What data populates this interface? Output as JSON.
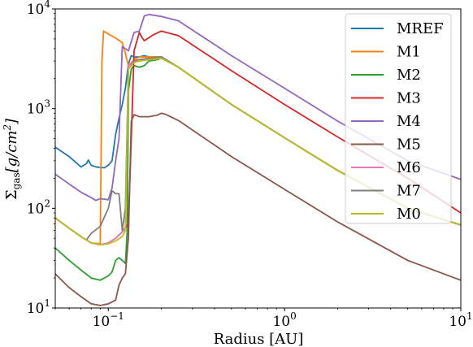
{
  "chart_data": {
    "type": "line",
    "xlabel": "Radius [AU]",
    "ylabel": "Σ_gas[g/cm²]",
    "xscale": "log",
    "yscale": "log",
    "xlim": [
      0.05,
      10
    ],
    "ylim": [
      10,
      10000
    ],
    "grid": false,
    "legend_position": "top-right",
    "x_ticks": [
      {
        "value": 0.1,
        "base": "10",
        "exp": "−1"
      },
      {
        "value": 1,
        "base": "10",
        "exp": "0"
      },
      {
        "value": 10,
        "base": "10",
        "exp": "1"
      }
    ],
    "y_ticks": [
      {
        "value": 10,
        "base": "10",
        "exp": "1"
      },
      {
        "value": 100,
        "base": "10",
        "exp": "2"
      },
      {
        "value": 1000,
        "base": "10",
        "exp": "3"
      },
      {
        "value": 10000,
        "base": "10",
        "exp": "4"
      }
    ],
    "series": [
      {
        "name": "MREF",
        "color": "#1f77b4",
        "x": [
          0.05,
          0.06,
          0.07,
          0.075,
          0.077,
          0.08,
          0.085,
          0.095,
          0.1,
          0.105,
          0.11,
          0.115,
          0.12,
          0.125,
          0.13,
          0.135,
          0.14,
          0.15,
          0.16,
          0.17,
          0.19,
          0.2,
          0.25,
          0.5,
          1,
          2,
          5,
          10
        ],
        "y": [
          410,
          330,
          260,
          280,
          305,
          270,
          260,
          255,
          270,
          300,
          550,
          800,
          1100,
          1600,
          2800,
          3400,
          3300,
          3300,
          3400,
          3300,
          3300,
          3300,
          2600,
          1100,
          510,
          240,
          100,
          68
        ]
      },
      {
        "name": "M1",
        "color": "#ff7f0e",
        "x": [
          0.05,
          0.06,
          0.07,
          0.08,
          0.09,
          0.092,
          0.094,
          0.1,
          0.11,
          0.12,
          0.125,
          0.128,
          0.13,
          0.14,
          0.15,
          0.16,
          0.19,
          0.2,
          0.25,
          0.5,
          1,
          2,
          5,
          10
        ],
        "y": [
          80,
          63,
          52,
          45,
          44,
          3000,
          6000,
          5600,
          5100,
          4600,
          3600,
          3000,
          2700,
          3100,
          3300,
          3300,
          3300,
          3300,
          2600,
          1100,
          510,
          240,
          100,
          68
        ]
      },
      {
        "name": "M2",
        "color": "#2ca02c",
        "x": [
          0.05,
          0.06,
          0.07,
          0.08,
          0.09,
          0.1,
          0.105,
          0.11,
          0.115,
          0.12,
          0.125,
          0.128,
          0.13,
          0.135,
          0.14,
          0.15,
          0.16,
          0.17,
          0.19,
          0.2,
          0.25,
          0.5,
          1,
          2,
          5,
          10
        ],
        "y": [
          40,
          30,
          24,
          20,
          19,
          21,
          23,
          30,
          32,
          30,
          28,
          60,
          1500,
          2500,
          2700,
          2600,
          2700,
          3000,
          3100,
          3200,
          2600,
          1100,
          510,
          240,
          100,
          68
        ]
      },
      {
        "name": "M3",
        "color": "#d62728",
        "x": [
          0.05,
          0.06,
          0.07,
          0.08,
          0.09,
          0.1,
          0.11,
          0.12,
          0.13,
          0.135,
          0.14,
          0.15,
          0.155,
          0.16,
          0.18,
          0.2,
          0.25,
          0.5,
          1,
          2,
          5,
          10
        ],
        "y": [
          80,
          63,
          52,
          45,
          43,
          45,
          50,
          58,
          70,
          500,
          3800,
          5800,
          5200,
          4800,
          5500,
          6000,
          5400,
          2400,
          1100,
          520,
          200,
          90
        ]
      },
      {
        "name": "M4",
        "color": "#9467bd",
        "x": [
          0.05,
          0.06,
          0.07,
          0.08,
          0.085,
          0.09,
          0.1,
          0.105,
          0.11,
          0.115,
          0.12,
          0.13,
          0.14,
          0.15,
          0.16,
          0.17,
          0.2,
          0.25,
          0.5,
          1,
          2,
          5,
          10
        ],
        "y": [
          220,
          175,
          145,
          128,
          120,
          125,
          122,
          160,
          300,
          500,
          4200,
          3800,
          5800,
          6000,
          8500,
          8800,
          8400,
          7600,
          3400,
          1600,
          750,
          300,
          195
        ]
      },
      {
        "name": "M5",
        "color": "#8c564b",
        "x": [
          0.05,
          0.06,
          0.07,
          0.08,
          0.09,
          0.1,
          0.105,
          0.11,
          0.115,
          0.12,
          0.125,
          0.13,
          0.135,
          0.14,
          0.15,
          0.17,
          0.19,
          0.2,
          0.21,
          0.25,
          0.5,
          1,
          2,
          5,
          10
        ],
        "y": [
          22,
          16,
          13,
          11,
          10.6,
          11,
          11.5,
          12,
          17,
          20,
          22,
          50,
          750,
          870,
          830,
          830,
          860,
          900,
          880,
          760,
          330,
          155,
          73,
          30,
          19
        ]
      },
      {
        "name": "M6",
        "color": "#e377c2",
        "x": [
          0.05,
          0.06,
          0.07,
          0.08,
          0.09,
          0.1,
          0.11,
          0.12,
          0.125,
          0.13,
          0.14,
          0.15,
          0.2,
          0.25,
          0.5,
          1,
          2,
          5,
          10
        ],
        "y": [
          80,
          63,
          52,
          45,
          43,
          45,
          50,
          58,
          65,
          2700,
          3000,
          3100,
          3300,
          2600,
          1100,
          510,
          240,
          100,
          68
        ]
      },
      {
        "name": "M7",
        "color": "#7f7f7f",
        "x": [
          0.05,
          0.06,
          0.07,
          0.075,
          0.08,
          0.09,
          0.1,
          0.105,
          0.11,
          0.115,
          0.12,
          0.125,
          0.13,
          0.14,
          0.15,
          0.2,
          0.25,
          0.5,
          1,
          2,
          5,
          10
        ],
        "y": [
          80,
          63,
          52,
          48,
          56,
          66,
          100,
          150,
          140,
          140,
          60,
          100,
          2500,
          3000,
          3100,
          3300,
          2600,
          1100,
          510,
          240,
          100,
          68
        ]
      },
      {
        "name": "M0",
        "color": "#bcbd22",
        "x": [
          0.05,
          0.06,
          0.07,
          0.08,
          0.09,
          0.1,
          0.11,
          0.12,
          0.125,
          0.13,
          0.14,
          0.15,
          0.2,
          0.25,
          0.5,
          1,
          2,
          5,
          10
        ],
        "y": [
          80,
          63,
          52,
          45,
          43,
          44,
          47,
          52,
          60,
          2500,
          2900,
          3000,
          3200,
          2600,
          1100,
          510,
          240,
          100,
          68
        ]
      }
    ]
  }
}
